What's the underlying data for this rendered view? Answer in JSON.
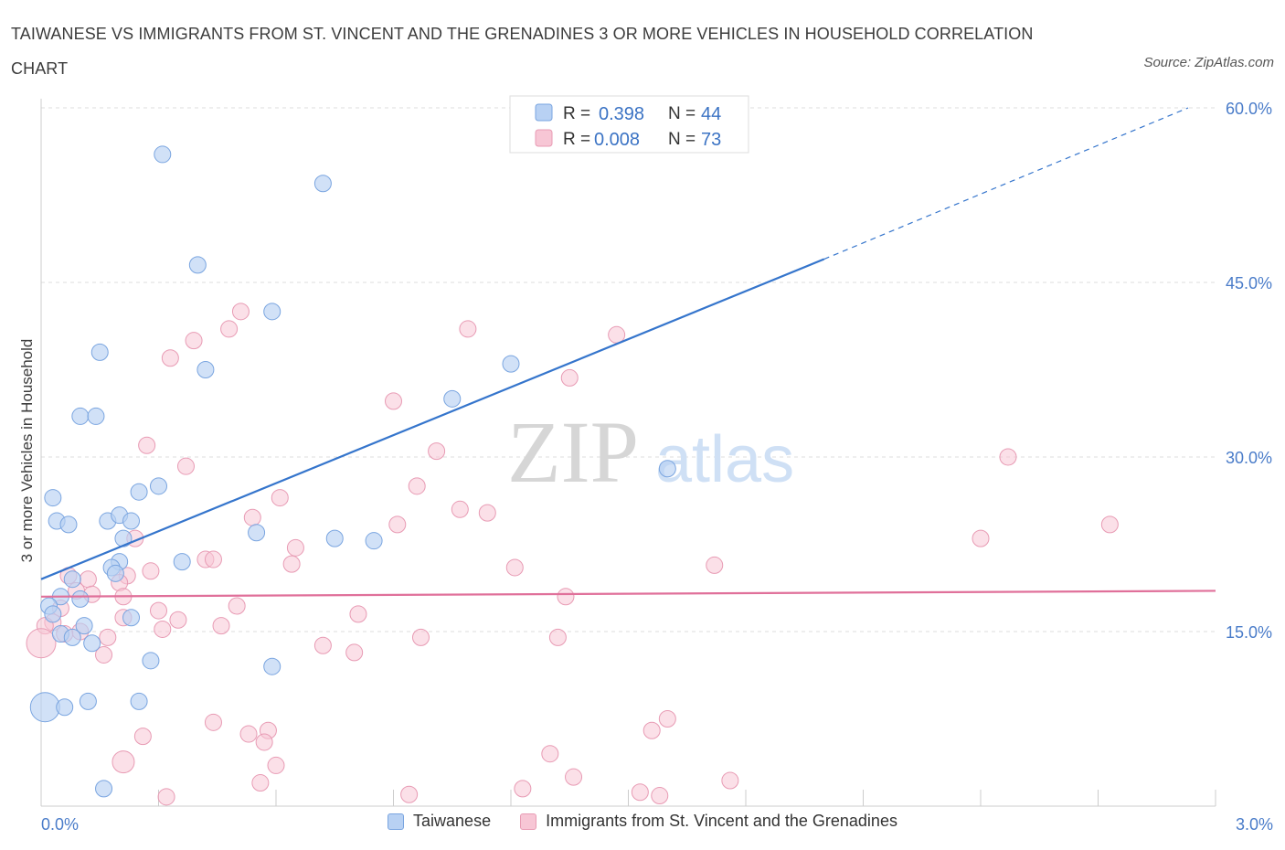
{
  "title": "TAIWANESE VS IMMIGRANTS FROM ST. VINCENT AND THE GRENADINES 3 OR MORE VEHICLES IN HOUSEHOLD CORRELATION CHART",
  "source": "Source: ZipAtlas.com",
  "watermark": {
    "zip": "ZIP",
    "atlas": "atlas"
  },
  "colors": {
    "blue_fill": "#b8d1f3",
    "blue_stroke": "#7aa5e0",
    "blue_line": "#3575cc",
    "pink_fill": "#f7c6d5",
    "pink_stroke": "#e89bb4",
    "pink_line": "#e0709a",
    "grid": "#dddddd",
    "tick_text": "#4a7cc9"
  },
  "legend_top": [
    {
      "r_label": "R =",
      "r_value": "0.398",
      "n_label": "N =",
      "n_value": "44"
    },
    {
      "r_label": "R =",
      "r_value": "0.008",
      "n_label": "N =",
      "n_value": "73"
    }
  ],
  "legend_bottom": [
    "Taiwanese",
    "Immigrants from St. Vincent and the Grenadines"
  ],
  "chart_data": {
    "type": "scatter",
    "title": "TAIWANESE VS IMMIGRANTS FROM ST. VINCENT AND THE GRENADINES 3 OR MORE VEHICLES IN HOUSEHOLD CORRELATION CHART",
    "xlabel": "",
    "ylabel": "3 or more Vehicles in Household",
    "xlim": [
      0,
      3.0
    ],
    "ylim": [
      0,
      60
    ],
    "x_ticks": [
      "0.0%",
      "3.0%"
    ],
    "y_ticks": [
      {
        "value": 15,
        "label": "15.0%"
      },
      {
        "value": 30,
        "label": "30.0%"
      },
      {
        "value": 45,
        "label": "45.0%"
      },
      {
        "value": 60,
        "label": "60.0%"
      }
    ],
    "grid": true,
    "legend_position": "top-center",
    "series": [
      {
        "name": "Taiwanese",
        "color": "#b8d1f3",
        "trend": {
          "x0": 0.0,
          "y0": 19.5,
          "x1": 2.0,
          "y1": 47.0,
          "dash_to_x": 2.93,
          "dash_to_y": 60.0
        },
        "points": [
          [
            0.31,
            56.0
          ],
          [
            0.72,
            53.5
          ],
          [
            0.4,
            46.5
          ],
          [
            0.59,
            42.5
          ],
          [
            0.15,
            39.0
          ],
          [
            0.42,
            37.5
          ],
          [
            1.2,
            38.0
          ],
          [
            0.1,
            33.5
          ],
          [
            0.14,
            33.5
          ],
          [
            1.05,
            35.0
          ],
          [
            0.03,
            26.5
          ],
          [
            0.3,
            27.5
          ],
          [
            0.25,
            27.0
          ],
          [
            1.6,
            29.0
          ],
          [
            0.04,
            24.5
          ],
          [
            0.07,
            24.2
          ],
          [
            0.17,
            24.5
          ],
          [
            0.2,
            25.0
          ],
          [
            0.23,
            24.5
          ],
          [
            0.55,
            23.5
          ],
          [
            0.75,
            23.0
          ],
          [
            0.85,
            22.8
          ],
          [
            0.21,
            23.0
          ],
          [
            0.2,
            21.0
          ],
          [
            0.18,
            20.5
          ],
          [
            0.36,
            21.0
          ],
          [
            0.19,
            20.0
          ],
          [
            0.08,
            19.5
          ],
          [
            0.05,
            18.0
          ],
          [
            0.1,
            17.8
          ],
          [
            0.02,
            17.2
          ],
          [
            0.03,
            16.5
          ],
          [
            0.23,
            16.2
          ],
          [
            0.11,
            15.5
          ],
          [
            0.05,
            14.8
          ],
          [
            0.08,
            14.5
          ],
          [
            0.13,
            14.0
          ],
          [
            0.28,
            12.5
          ],
          [
            0.59,
            12.0
          ],
          [
            0.01,
            8.5
          ],
          [
            0.06,
            8.5
          ],
          [
            0.12,
            9.0
          ],
          [
            0.25,
            9.0
          ],
          [
            0.16,
            1.5
          ]
        ]
      },
      {
        "name": "Immigrants from St. Vincent and the Grenadines",
        "color": "#f7c6d5",
        "trend": {
          "x0": 0.0,
          "y0": 18.0,
          "x1": 3.0,
          "y1": 18.5
        },
        "points": [
          [
            0.51,
            42.5
          ],
          [
            0.48,
            41.0
          ],
          [
            1.09,
            41.0
          ],
          [
            1.47,
            40.5
          ],
          [
            0.39,
            40.0
          ],
          [
            0.33,
            38.5
          ],
          [
            1.35,
            36.8
          ],
          [
            0.9,
            34.8
          ],
          [
            0.27,
            31.0
          ],
          [
            1.01,
            30.5
          ],
          [
            0.37,
            29.2
          ],
          [
            2.47,
            30.0
          ],
          [
            0.96,
            27.5
          ],
          [
            0.61,
            26.5
          ],
          [
            1.07,
            25.5
          ],
          [
            1.14,
            25.2
          ],
          [
            0.54,
            24.8
          ],
          [
            0.91,
            24.2
          ],
          [
            2.73,
            24.2
          ],
          [
            2.4,
            23.0
          ],
          [
            0.24,
            23.0
          ],
          [
            0.65,
            22.2
          ],
          [
            0.42,
            21.2
          ],
          [
            0.44,
            21.2
          ],
          [
            0.64,
            20.8
          ],
          [
            1.21,
            20.5
          ],
          [
            1.72,
            20.7
          ],
          [
            0.28,
            20.2
          ],
          [
            0.22,
            19.8
          ],
          [
            0.07,
            19.8
          ],
          [
            0.12,
            19.5
          ],
          [
            0.2,
            19.2
          ],
          [
            0.09,
            18.5
          ],
          [
            0.13,
            18.2
          ],
          [
            0.21,
            18.0
          ],
          [
            1.34,
            18.0
          ],
          [
            0.5,
            17.2
          ],
          [
            0.05,
            17.0
          ],
          [
            0.3,
            16.8
          ],
          [
            0.81,
            16.5
          ],
          [
            0.35,
            16.0
          ],
          [
            0.21,
            16.2
          ],
          [
            0.03,
            15.8
          ],
          [
            0.01,
            15.5
          ],
          [
            0.46,
            15.5
          ],
          [
            0.31,
            15.2
          ],
          [
            0.1,
            15.0
          ],
          [
            0.06,
            14.8
          ],
          [
            0.17,
            14.5
          ],
          [
            0.97,
            14.5
          ],
          [
            1.32,
            14.5
          ],
          [
            0.72,
            13.8
          ],
          [
            0.8,
            13.2
          ],
          [
            0.16,
            13.0
          ],
          [
            0.0,
            14.0
          ],
          [
            0.44,
            7.2
          ],
          [
            0.26,
            6.0
          ],
          [
            0.53,
            6.2
          ],
          [
            0.58,
            6.5
          ],
          [
            0.57,
            5.5
          ],
          [
            1.6,
            7.5
          ],
          [
            1.56,
            6.5
          ],
          [
            0.21,
            3.8
          ],
          [
            0.6,
            3.5
          ],
          [
            1.3,
            4.5
          ],
          [
            1.36,
            2.5
          ],
          [
            1.76,
            2.2
          ],
          [
            0.56,
            2.0
          ],
          [
            1.23,
            1.5
          ],
          [
            0.94,
            1.0
          ],
          [
            1.53,
            1.2
          ],
          [
            1.58,
            0.9
          ],
          [
            0.32,
            0.8
          ]
        ]
      }
    ]
  }
}
